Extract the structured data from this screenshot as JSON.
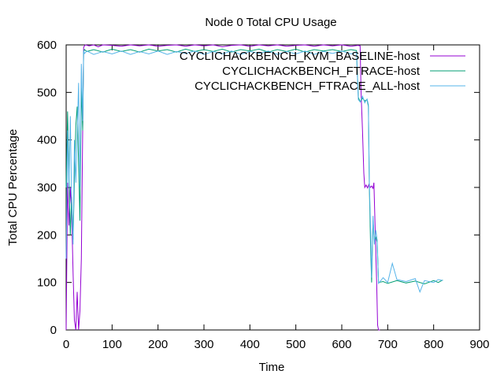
{
  "chart_data": {
    "type": "line",
    "title": "Node 0 Total CPU Usage",
    "xlabel": "Time",
    "ylabel": "Total CPU Percentage",
    "xlim": [
      0,
      900
    ],
    "ylim": [
      0,
      600
    ],
    "x_ticks": [
      0,
      100,
      200,
      300,
      400,
      500,
      600,
      700,
      800,
      900
    ],
    "y_ticks": [
      0,
      100,
      200,
      300,
      400,
      500,
      600
    ],
    "grid": false,
    "legend_position": "top-right",
    "series": [
      {
        "name": "CYCLICHACKBENCH_KVM_BASELINE-host",
        "color": "#9400d3",
        "points": [
          [
            0,
            0
          ],
          [
            3,
            310
          ],
          [
            6,
            220
          ],
          [
            9,
            300
          ],
          [
            12,
            250
          ],
          [
            15,
            120
          ],
          [
            18,
            20
          ],
          [
            21,
            0
          ],
          [
            24,
            80
          ],
          [
            27,
            0
          ],
          [
            30,
            40
          ],
          [
            33,
            150
          ],
          [
            36,
            420
          ],
          [
            38,
            595
          ],
          [
            40,
            598
          ],
          [
            42,
            600
          ],
          [
            50,
            598
          ],
          [
            60,
            600
          ],
          [
            70,
            596
          ],
          [
            80,
            600
          ],
          [
            100,
            599
          ],
          [
            120,
            597
          ],
          [
            140,
            600
          ],
          [
            160,
            598
          ],
          [
            180,
            600
          ],
          [
            200,
            597
          ],
          [
            220,
            599
          ],
          [
            240,
            600
          ],
          [
            260,
            597
          ],
          [
            280,
            600
          ],
          [
            300,
            598
          ],
          [
            320,
            600
          ],
          [
            340,
            596
          ],
          [
            360,
            599
          ],
          [
            380,
            600
          ],
          [
            400,
            597
          ],
          [
            420,
            600
          ],
          [
            440,
            598
          ],
          [
            460,
            600
          ],
          [
            480,
            597
          ],
          [
            500,
            599
          ],
          [
            520,
            600
          ],
          [
            540,
            597
          ],
          [
            560,
            600
          ],
          [
            580,
            598
          ],
          [
            600,
            600
          ],
          [
            620,
            597
          ],
          [
            635,
            599
          ],
          [
            640,
            598
          ],
          [
            642,
            500
          ],
          [
            645,
            420
          ],
          [
            648,
            330
          ],
          [
            650,
            300
          ],
          [
            653,
            305
          ],
          [
            656,
            299
          ],
          [
            659,
            306
          ],
          [
            662,
            300
          ],
          [
            665,
            303
          ],
          [
            668,
            298
          ],
          [
            670,
            310
          ],
          [
            673,
            200
          ],
          [
            676,
            100
          ],
          [
            678,
            10
          ],
          [
            680,
            0
          ],
          [
            683,
            0
          ]
        ]
      },
      {
        "name": "CYCLICHACKBENCH_FTRACE-host",
        "color": "#009e73",
        "points": [
          [
            0,
            300
          ],
          [
            3,
            460
          ],
          [
            6,
            330
          ],
          [
            9,
            200
          ],
          [
            12,
            280
          ],
          [
            15,
            190
          ],
          [
            18,
            320
          ],
          [
            21,
            430
          ],
          [
            24,
            470
          ],
          [
            27,
            350
          ],
          [
            30,
            230
          ],
          [
            33,
            510
          ],
          [
            36,
            420
          ],
          [
            38,
            585
          ],
          [
            40,
            590
          ],
          [
            45,
            586
          ],
          [
            60,
            590
          ],
          [
            80,
            585
          ],
          [
            100,
            591
          ],
          [
            120,
            586
          ],
          [
            140,
            590
          ],
          [
            160,
            585
          ],
          [
            180,
            591
          ],
          [
            200,
            587
          ],
          [
            220,
            590
          ],
          [
            240,
            585
          ],
          [
            260,
            591
          ],
          [
            280,
            586
          ],
          [
            300,
            590
          ],
          [
            320,
            586
          ],
          [
            340,
            591
          ],
          [
            360,
            585
          ],
          [
            380,
            590
          ],
          [
            400,
            587
          ],
          [
            420,
            591
          ],
          [
            440,
            585
          ],
          [
            460,
            590
          ],
          [
            480,
            586
          ],
          [
            500,
            591
          ],
          [
            520,
            585
          ],
          [
            540,
            590
          ],
          [
            560,
            587
          ],
          [
            580,
            590
          ],
          [
            600,
            586
          ],
          [
            620,
            590
          ],
          [
            632,
            588
          ],
          [
            636,
            490
          ],
          [
            640,
            480
          ],
          [
            645,
            488
          ],
          [
            650,
            482
          ],
          [
            655,
            485
          ],
          [
            658,
            470
          ],
          [
            660,
            300
          ],
          [
            663,
            160
          ],
          [
            665,
            100
          ],
          [
            668,
            230
          ],
          [
            671,
            190
          ],
          [
            674,
            195
          ],
          [
            677,
            185
          ],
          [
            680,
            100
          ],
          [
            690,
            102
          ],
          [
            700,
            98
          ],
          [
            720,
            104
          ],
          [
            740,
            99
          ],
          [
            760,
            103
          ],
          [
            780,
            97
          ],
          [
            800,
            104
          ],
          [
            810,
            100
          ],
          [
            820,
            105
          ]
        ]
      },
      {
        "name": "CYCLICHACKBENCH_FTRACE_ALL-host",
        "color": "#56b4e9",
        "points": [
          [
            0,
            150
          ],
          [
            3,
            420
          ],
          [
            6,
            300
          ],
          [
            9,
            450
          ],
          [
            12,
            270
          ],
          [
            15,
            180
          ],
          [
            18,
            400
          ],
          [
            21,
            310
          ],
          [
            24,
            410
          ],
          [
            27,
            520
          ],
          [
            30,
            300
          ],
          [
            33,
            560
          ],
          [
            36,
            440
          ],
          [
            38,
            588
          ],
          [
            40,
            582
          ],
          [
            45,
            587
          ],
          [
            60,
            580
          ],
          [
            80,
            586
          ],
          [
            100,
            581
          ],
          [
            120,
            587
          ],
          [
            140,
            580
          ],
          [
            160,
            586
          ],
          [
            180,
            581
          ],
          [
            200,
            587
          ],
          [
            220,
            580
          ],
          [
            240,
            586
          ],
          [
            260,
            582
          ],
          [
            280,
            587
          ],
          [
            300,
            580
          ],
          [
            320,
            586
          ],
          [
            340,
            581
          ],
          [
            360,
            587
          ],
          [
            380,
            580
          ],
          [
            400,
            586
          ],
          [
            420,
            582
          ],
          [
            440,
            587
          ],
          [
            460,
            580
          ],
          [
            480,
            586
          ],
          [
            500,
            581
          ],
          [
            520,
            587
          ],
          [
            540,
            580
          ],
          [
            560,
            586
          ],
          [
            580,
            582
          ],
          [
            600,
            587
          ],
          [
            620,
            581
          ],
          [
            632,
            585
          ],
          [
            636,
            485
          ],
          [
            640,
            480
          ],
          [
            645,
            492
          ],
          [
            650,
            478
          ],
          [
            655,
            486
          ],
          [
            658,
            475
          ],
          [
            660,
            310
          ],
          [
            663,
            200
          ],
          [
            665,
            110
          ],
          [
            668,
            240
          ],
          [
            671,
            180
          ],
          [
            674,
            210
          ],
          [
            677,
            190
          ],
          [
            680,
            98
          ],
          [
            690,
            110
          ],
          [
            700,
            100
          ],
          [
            710,
            140
          ],
          [
            720,
            106
          ],
          [
            740,
            102
          ],
          [
            760,
            108
          ],
          [
            770,
            80
          ],
          [
            780,
            104
          ],
          [
            800,
            100
          ],
          [
            810,
            106
          ],
          [
            820,
            104
          ]
        ]
      }
    ]
  }
}
